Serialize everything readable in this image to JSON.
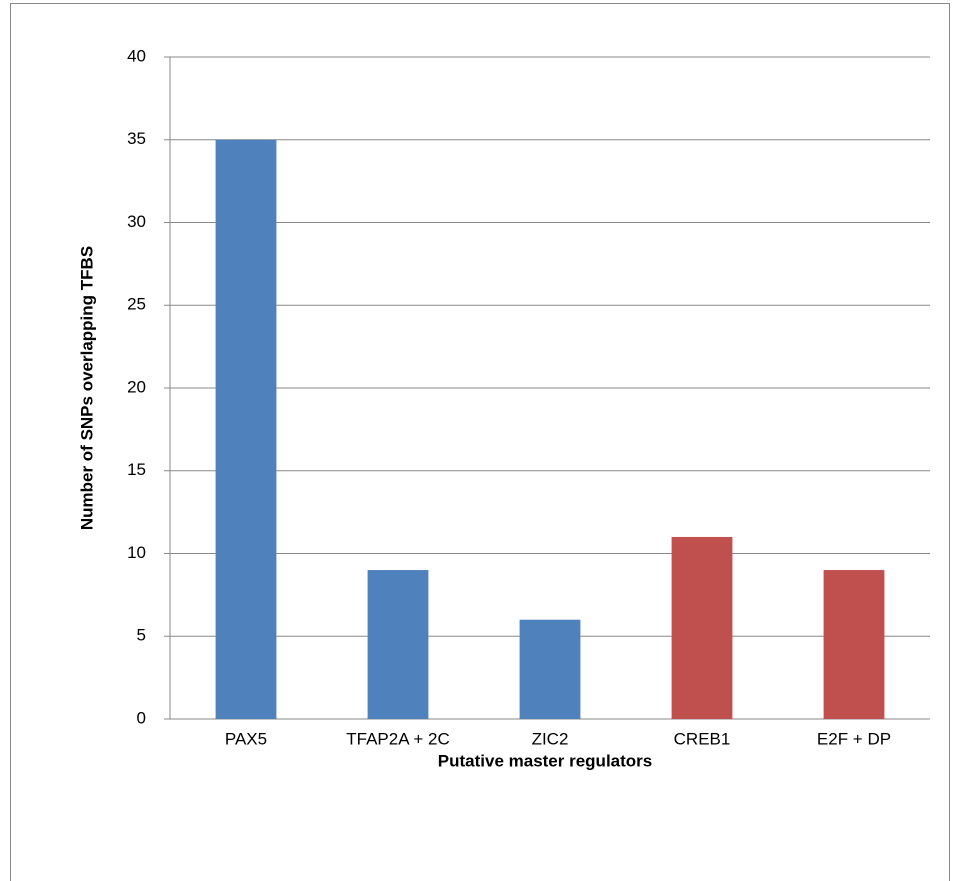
{
  "chart_data": {
    "type": "bar",
    "x_label": "Putative master regulators",
    "y_label": "Number of SNPs overlapping TFBS",
    "categories": [
      "PAX5",
      "TFAP2A + 2C",
      "ZIC2",
      "CREB1",
      "E2F + DP"
    ],
    "values": [
      35,
      9,
      6,
      11,
      9
    ],
    "colors": [
      "#4f81bd",
      "#4f81bd",
      "#4f81bd",
      "#c0504d",
      "#c0504d"
    ],
    "ylim": [
      0,
      40
    ],
    "yticks": [
      0,
      5,
      10,
      15,
      20,
      25,
      30,
      35,
      40
    ],
    "grid": true
  }
}
